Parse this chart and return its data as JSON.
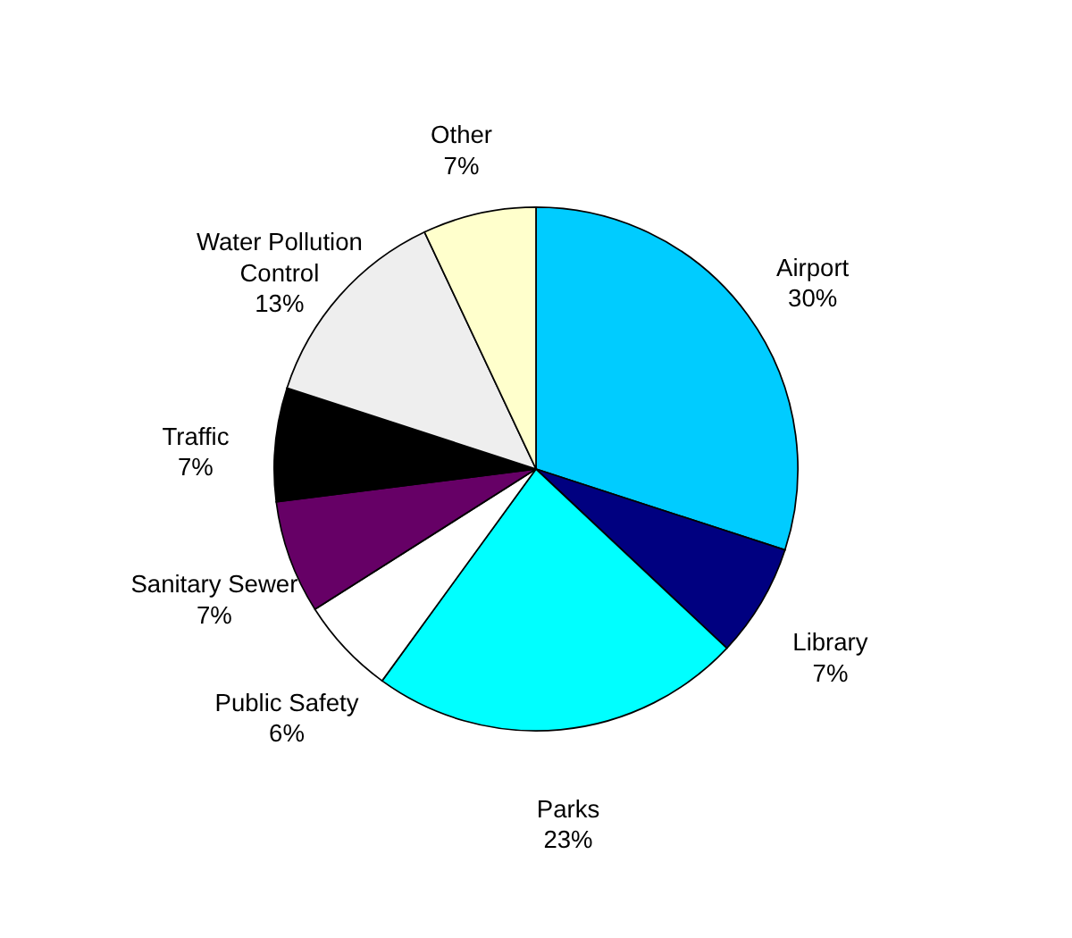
{
  "chart_data": {
    "type": "pie",
    "categories": [
      "Airport",
      "Library",
      "Parks",
      "Public Safety",
      "Sanitary Sewer",
      "Traffic",
      "Water Pollution Control",
      "Other"
    ],
    "values": [
      30,
      7,
      23,
      6,
      7,
      7,
      13,
      7
    ],
    "value_labels": [
      "30%",
      "7%",
      "23%",
      "6%",
      "7%",
      "7%",
      "13%",
      "7%"
    ],
    "colors": [
      "#00ccff",
      "#000080",
      "#00ffff",
      "#ffffff",
      "#660066",
      "#000000",
      "#eeeeee",
      "#ffffcc"
    ]
  }
}
